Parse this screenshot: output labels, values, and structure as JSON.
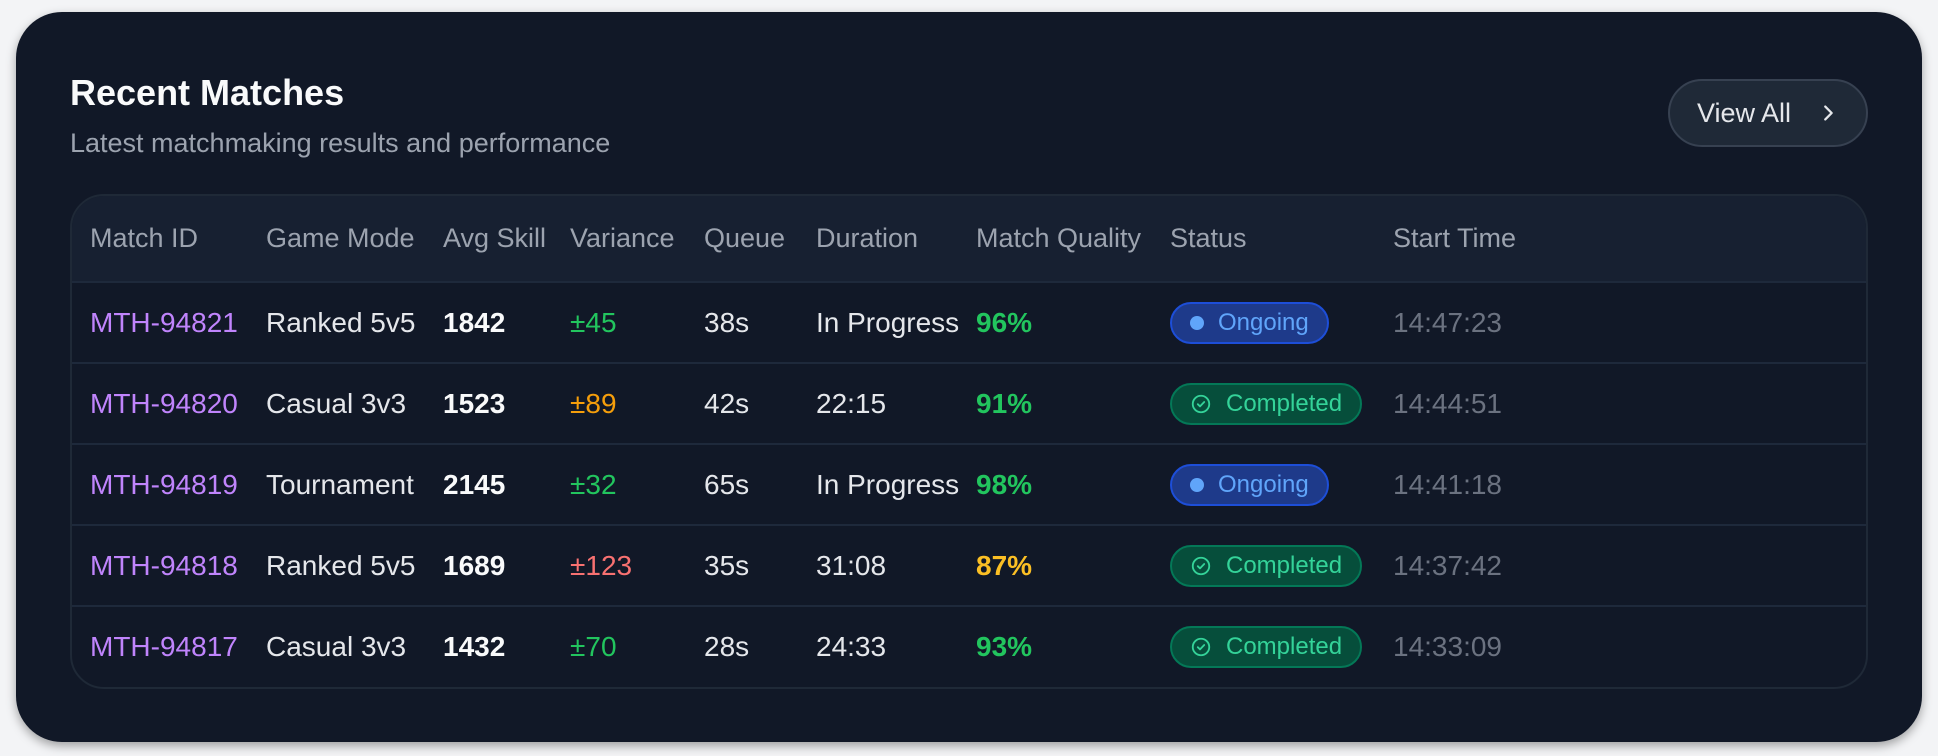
{
  "header": {
    "title": "Recent Matches",
    "subtitle": "Latest matchmaking results and performance",
    "view_all_label": "View All"
  },
  "table": {
    "columns": [
      "Match ID",
      "Game Mode",
      "Avg Skill",
      "Variance",
      "Queue",
      "Duration",
      "Match Quality",
      "Status",
      "Start Time"
    ],
    "rows": [
      {
        "match_id": "MTH-94821",
        "mode": "Ranked 5v5",
        "skill": "1842",
        "variance": "±45",
        "variance_color": "#22c55e",
        "queue": "38s",
        "duration": "In Progress",
        "quality": "96%",
        "quality_color": "#22c55e",
        "status": "Ongoing",
        "status_type": "ongoing",
        "start": "14:47:23"
      },
      {
        "match_id": "MTH-94820",
        "mode": "Casual 3v3",
        "skill": "1523",
        "variance": "±89",
        "variance_color": "#f59e0b",
        "queue": "42s",
        "duration": "22:15",
        "quality": "91%",
        "quality_color": "#22c55e",
        "status": "Completed",
        "status_type": "completed",
        "start": "14:44:51"
      },
      {
        "match_id": "MTH-94819",
        "mode": "Tournament",
        "skill": "2145",
        "variance": "±32",
        "variance_color": "#22c55e",
        "queue": "65s",
        "duration": "In Progress",
        "quality": "98%",
        "quality_color": "#22c55e",
        "status": "Ongoing",
        "status_type": "ongoing",
        "start": "14:41:18"
      },
      {
        "match_id": "MTH-94818",
        "mode": "Ranked 5v5",
        "skill": "1689",
        "variance": "±123",
        "variance_color": "#f87171",
        "queue": "35s",
        "duration": "31:08",
        "quality": "87%",
        "quality_color": "#fbbf24",
        "status": "Completed",
        "status_type": "completed",
        "start": "14:37:42"
      },
      {
        "match_id": "MTH-94817",
        "mode": "Casual 3v3",
        "skill": "1432",
        "variance": "±70",
        "variance_color": "#22c55e",
        "queue": "28s",
        "duration": "24:33",
        "quality": "93%",
        "quality_color": "#22c55e",
        "status": "Completed",
        "status_type": "completed",
        "start": "14:33:09"
      }
    ]
  },
  "colors": {
    "card_bg": "#111827",
    "match_id": "#c084fc",
    "ongoing": "#60a5fa",
    "completed": "#34d399"
  },
  "icons": {
    "view_all": "chevron-right-icon",
    "ongoing": "dot-icon",
    "completed": "check-circle-icon"
  }
}
